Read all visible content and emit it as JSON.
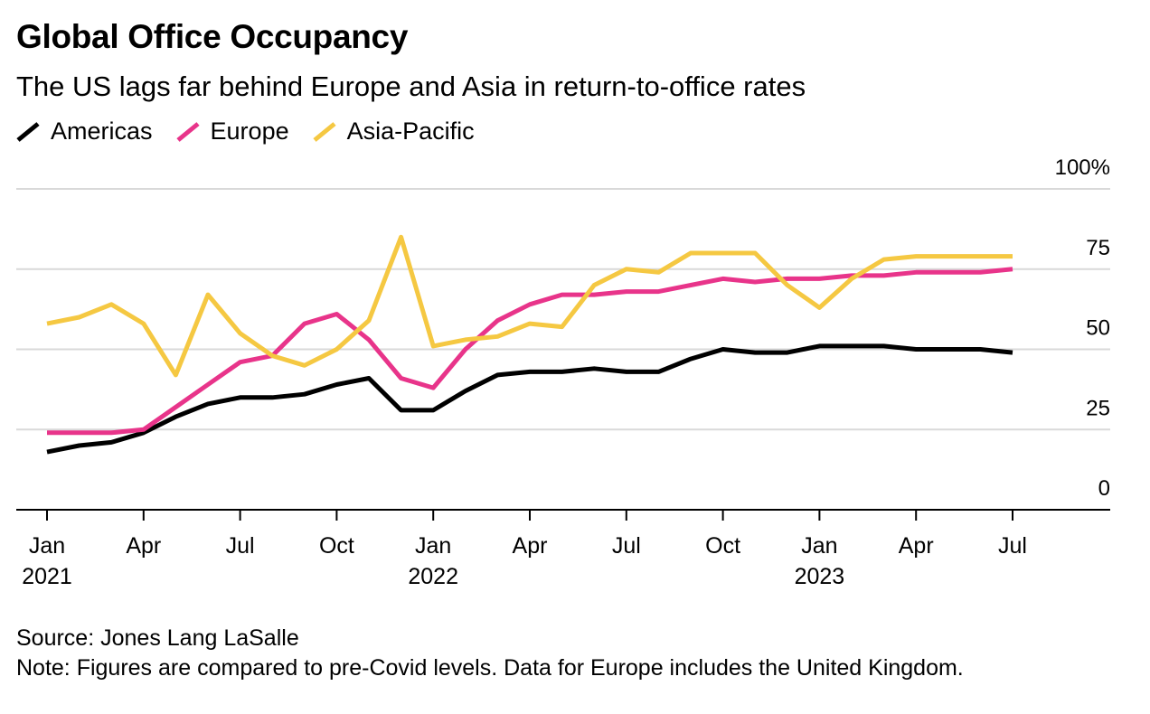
{
  "title": "Global Office Occupancy",
  "subtitle": "The US lags far behind Europe and Asia in return-to-office rates",
  "source": "Source: Jones Lang LaSalle",
  "note": "Note: Figures are compared to pre-Covid levels. Data for Europe includes the United Kingdom.",
  "colors": {
    "americas": "#000000",
    "europe": "#e8348a",
    "asia": "#f5c842",
    "grid": "#d9d9d9"
  },
  "chart_data": {
    "type": "line",
    "title": "Global Office Occupancy",
    "xlabel": "",
    "ylabel": "",
    "ylim": [
      0,
      100
    ],
    "yticks": [
      "0",
      "25",
      "50",
      "75",
      "100%"
    ],
    "x_start": "2021-01",
    "x_end": "2023-07",
    "x": [
      "2021-01",
      "2021-02",
      "2021-03",
      "2021-04",
      "2021-05",
      "2021-06",
      "2021-07",
      "2021-08",
      "2021-09",
      "2021-10",
      "2021-11",
      "2021-12",
      "2022-01",
      "2022-02",
      "2022-03",
      "2022-04",
      "2022-05",
      "2022-06",
      "2022-07",
      "2022-08",
      "2022-09",
      "2022-10",
      "2022-11",
      "2022-12",
      "2023-01",
      "2023-02",
      "2023-03",
      "2023-04",
      "2023-05",
      "2023-06",
      "2023-07"
    ],
    "xticks": [
      {
        "month": "Jan",
        "year": "2021",
        "index": 0
      },
      {
        "month": "Apr",
        "year": "",
        "index": 3
      },
      {
        "month": "Jul",
        "year": "",
        "index": 6
      },
      {
        "month": "Oct",
        "year": "",
        "index": 9
      },
      {
        "month": "Jan",
        "year": "2022",
        "index": 12
      },
      {
        "month": "Apr",
        "year": "",
        "index": 15
      },
      {
        "month": "Jul",
        "year": "",
        "index": 18
      },
      {
        "month": "Oct",
        "year": "",
        "index": 21
      },
      {
        "month": "Jan",
        "year": "2023",
        "index": 24
      },
      {
        "month": "Apr",
        "year": "",
        "index": 27
      },
      {
        "month": "Jul",
        "year": "",
        "index": 30
      }
    ],
    "series": [
      {
        "name": "Americas",
        "color": "#000000",
        "values": [
          18,
          20,
          21,
          24,
          29,
          33,
          35,
          35,
          36,
          39,
          41,
          31,
          31,
          37,
          42,
          43,
          43,
          44,
          43,
          43,
          47,
          50,
          49,
          49,
          51,
          51,
          51,
          50,
          50,
          50,
          49
        ]
      },
      {
        "name": "Europe",
        "color": "#e8348a",
        "values": [
          24,
          24,
          24,
          25,
          32,
          39,
          46,
          48,
          58,
          61,
          53,
          41,
          38,
          50,
          59,
          64,
          67,
          67,
          68,
          68,
          70,
          72,
          71,
          72,
          72,
          73,
          73,
          74,
          74,
          74,
          75
        ]
      },
      {
        "name": "Asia-Pacific",
        "color": "#f5c842",
        "values": [
          58,
          60,
          64,
          58,
          42,
          67,
          55,
          48,
          45,
          50,
          59,
          85,
          51,
          53,
          54,
          58,
          57,
          70,
          75,
          74,
          80,
          80,
          80,
          70,
          63,
          72,
          78,
          79,
          79,
          79,
          79
        ]
      }
    ]
  }
}
